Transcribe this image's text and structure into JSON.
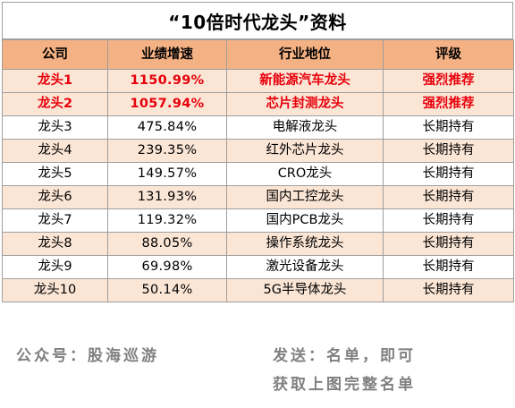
{
  "title": "“10倍时代龙头”资料",
  "columns": [
    "公司",
    "业绩增速",
    "行业地位",
    "评级"
  ],
  "rows": [
    {
      "company": "龙头1",
      "growth": "1150.99%",
      "position": "新能源汽车龙头",
      "rating": "强烈推荐",
      "highlight": true
    },
    {
      "company": "龙头2",
      "growth": "1057.94%",
      "position": "芯片封测龙头",
      "rating": "强烈推荐",
      "highlight": true
    },
    {
      "company": "龙头3",
      "growth": "475.84%",
      "position": "电解液龙头",
      "rating": "长期持有",
      "highlight": false
    },
    {
      "company": "龙头4",
      "growth": "239.35%",
      "position": "红外芯片龙头",
      "rating": "长期持有",
      "highlight": false
    },
    {
      "company": "龙头5",
      "growth": "149.57%",
      "position": "CRO龙头",
      "rating": "长期持有",
      "highlight": false
    },
    {
      "company": "龙头6",
      "growth": "131.93%",
      "position": "国内工控龙头",
      "rating": "长期持有",
      "highlight": false
    },
    {
      "company": "龙头7",
      "growth": "119.32%",
      "position": "国内PCB龙头",
      "rating": "长期持有",
      "highlight": false
    },
    {
      "company": "龙头8",
      "growth": "88.05%",
      "position": "操作系统龙头",
      "rating": "长期持有",
      "highlight": false
    },
    {
      "company": "龙头9",
      "growth": "69.98%",
      "position": "激光设备龙头",
      "rating": "长期持有",
      "highlight": false
    },
    {
      "company": "龙头10",
      "growth": "50.14%",
      "position": "5G半导体龙头",
      "rating": "长期持有",
      "highlight": false
    }
  ],
  "footer": {
    "account": "公众号：股海巡游",
    "send": "发送：名单，即可",
    "get": "获取上图完整名单"
  },
  "colors": {
    "header_bg": "#f4b183",
    "alt_row_bg": "#fbe6d6",
    "highlight_text": "#e8000b",
    "footer_text": "#808080",
    "border": "#9e9e9e"
  }
}
